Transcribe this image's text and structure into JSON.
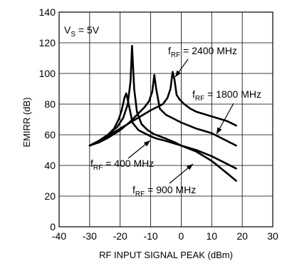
{
  "chart_data": {
    "type": "line",
    "title": "",
    "xlabel": "RF INPUT SIGNAL PEAK (dBm)",
    "ylabel": "EMIRR (dB)",
    "xlim": [
      -40,
      30
    ],
    "ylim": [
      0,
      140
    ],
    "xticks": [
      -40,
      -30,
      -20,
      -10,
      0,
      10,
      20,
      30
    ],
    "yticks": [
      0,
      20,
      40,
      60,
      80,
      100,
      120,
      140
    ],
    "xtick_labels": [
      "-40",
      "-30",
      "-20",
      "-10",
      "0",
      "10",
      "20",
      "30"
    ],
    "ytick_labels": [
      "0",
      "20",
      "40",
      "60",
      "80",
      "100",
      "120",
      "140"
    ],
    "grid": true,
    "supply_text": "V",
    "supply_sub": "S",
    "supply_value": " = 5V",
    "series": [
      {
        "name": "400 MHz",
        "label_prefix": "f",
        "label_sub": "RF",
        "label_value": " = 400 MHz",
        "x": [
          -30,
          -27,
          -24,
          -22,
          -20.5,
          -19.5,
          -18.6,
          -18,
          -17,
          -16,
          -14,
          -12,
          -10,
          -8,
          -5,
          0,
          5,
          10,
          15,
          18
        ],
        "y": [
          53,
          56,
          60,
          64,
          70,
          76,
          84,
          87,
          78,
          68,
          63,
          61,
          59,
          57.5,
          56,
          53,
          50,
          46,
          41,
          38
        ]
      },
      {
        "name": "900 MHz",
        "label_prefix": "f",
        "label_sub": "RF",
        "label_value": " = 900 MHz",
        "x": [
          -30,
          -27,
          -24,
          -21,
          -19,
          -17.5,
          -16.6,
          -16.1,
          -15.4,
          -14.5,
          -13,
          -11,
          -9,
          -7,
          -5,
          -2,
          0,
          5,
          10,
          15,
          18
        ],
        "y": [
          53,
          56,
          60,
          65,
          71,
          80,
          95,
          118,
          90,
          75,
          67,
          63,
          60.5,
          59,
          57.5,
          55,
          53,
          49,
          43,
          35,
          30
        ]
      },
      {
        "name": "1800 MHz",
        "label_prefix": "f",
        "label_sub": "RF",
        "label_value": " = 1800 MHz",
        "x": [
          -30,
          -27,
          -24,
          -20,
          -17,
          -14,
          -12,
          -10.5,
          -9.5,
          -8.8,
          -8.2,
          -7,
          -5,
          -2,
          0,
          5,
          10,
          15,
          18
        ],
        "y": [
          53,
          55,
          58,
          63,
          68,
          74,
          78,
          82,
          88,
          99,
          90,
          77,
          73,
          70,
          68,
          64,
          61,
          56,
          53
        ]
      },
      {
        "name": "2400 MHz",
        "label_prefix": "f",
        "label_sub": "RF",
        "label_value": " = 2400 MHz",
        "x": [
          -30,
          -25,
          -20,
          -15,
          -10,
          -6,
          -4.5,
          -3.5,
          -2.8,
          -2.2,
          -1.5,
          -0.5,
          1,
          3,
          5,
          10,
          15,
          18
        ],
        "y": [
          53,
          58,
          64,
          70,
          76,
          80,
          84,
          90,
          101,
          96,
          86,
          83,
          80,
          77,
          75,
          72,
          69,
          66
        ]
      }
    ]
  }
}
